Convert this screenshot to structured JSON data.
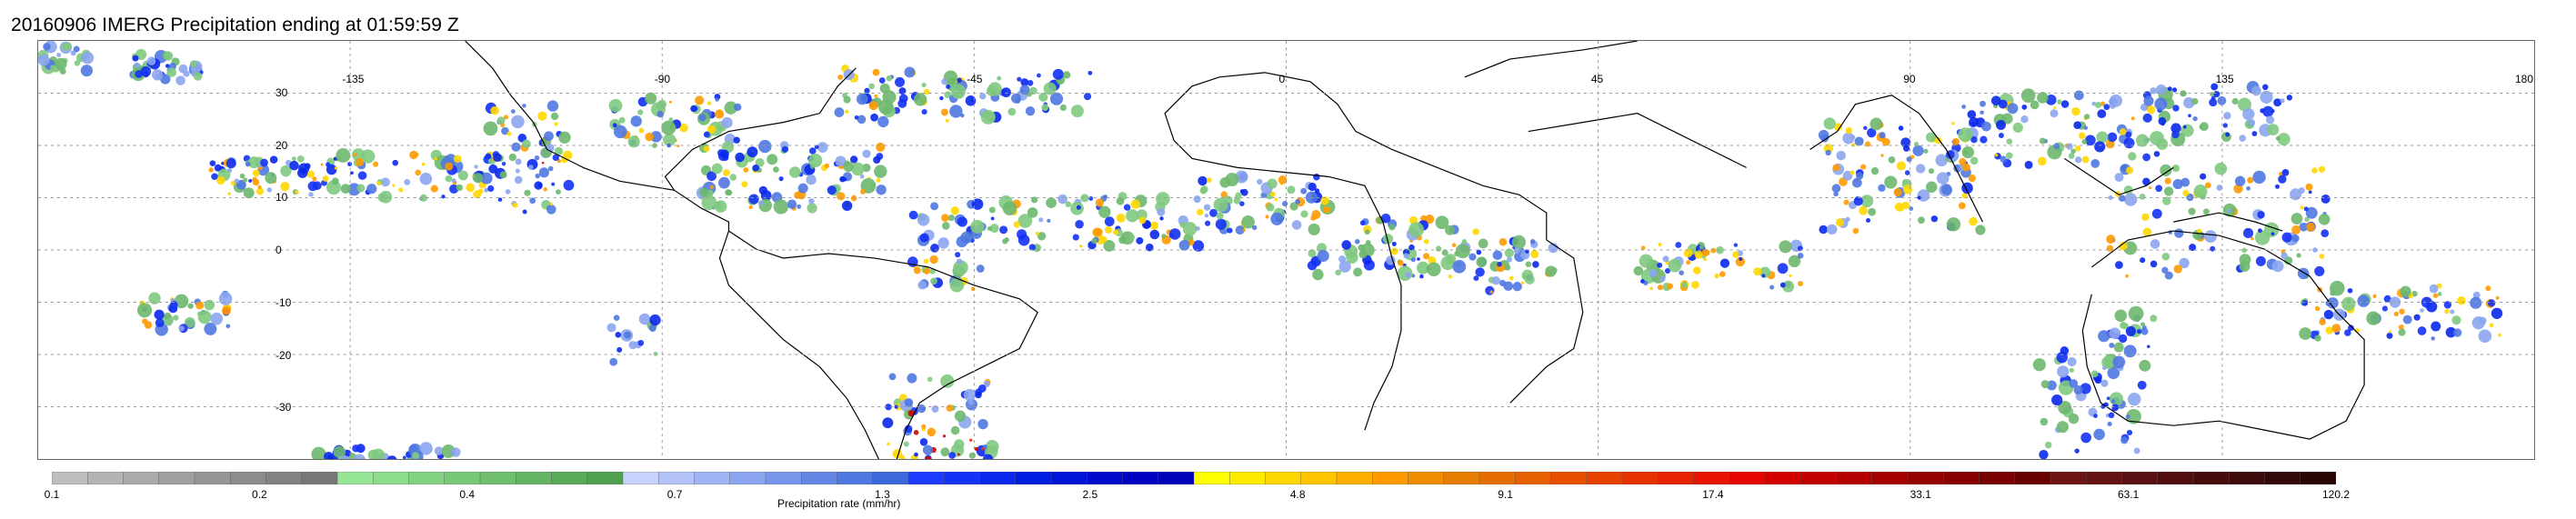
{
  "title": "20160906 IMERG Precipitation ending at 01:59:59 Z",
  "map": {
    "lon_labels": [
      "-135",
      "-90",
      "-45",
      "0",
      "45",
      "90",
      "135",
      "180"
    ],
    "lat_labels": [
      "30",
      "20",
      "10",
      "0",
      "-10",
      "-20",
      "-30"
    ],
    "grid": "dotted"
  },
  "colorbar": {
    "label": "Precipitation rate (mm/hr)",
    "ticks": [
      "0.1",
      "0.2",
      "0.4",
      "0.7",
      "1.3",
      "2.5",
      "4.8",
      "9.1",
      "17.4",
      "33.1",
      "63.1",
      "120.2"
    ],
    "colors": [
      "#bebebe",
      "#b4b4b4",
      "#aaaaaa",
      "#a0a0a0",
      "#969696",
      "#8c8c8c",
      "#828282",
      "#787878",
      "#96e696",
      "#8cdc8c",
      "#82d282",
      "#78c878",
      "#6ebe6e",
      "#64b464",
      "#5aaa5a",
      "#50a050",
      "#c8d2ff",
      "#b4c3fa",
      "#a0b4f5",
      "#8ca5f0",
      "#7896eb",
      "#6487e6",
      "#5078e1",
      "#3c69dc",
      "#1e3cff",
      "#1432f5",
      "#0a28eb",
      "#001ee1",
      "#0014d7",
      "#000acd",
      "#0000c3",
      "#0000b9",
      "#ffff00",
      "#ffeb00",
      "#ffd700",
      "#ffc300",
      "#ffaf00",
      "#ff9b00",
      "#f08c00",
      "#e67d00",
      "#e66e00",
      "#e65f00",
      "#e65000",
      "#e64100",
      "#e63200",
      "#e62300",
      "#e61400",
      "#e60500",
      "#d20000",
      "#c30000",
      "#b40000",
      "#a50000",
      "#960000",
      "#870000",
      "#780000",
      "#690000",
      "#6e1414",
      "#641212",
      "#5a1010",
      "#500e0e",
      "#460c0c",
      "#3c0a0a",
      "#320808",
      "#280606"
    ]
  }
}
